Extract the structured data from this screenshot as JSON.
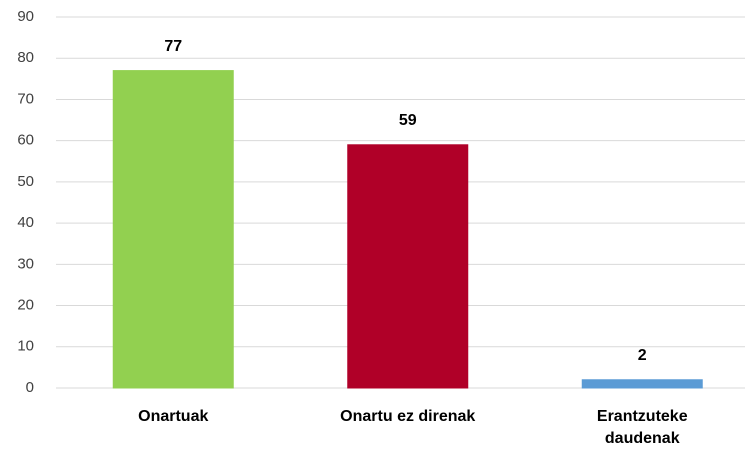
{
  "chart_data": {
    "type": "bar",
    "categories": [
      "Onartuak",
      "Onartu ez direnak",
      "Erantzuteke daudenak"
    ],
    "values": [
      77,
      59,
      2
    ],
    "colors": [
      "#92d050",
      "#b00028",
      "#5b9bd5"
    ],
    "ylim": [
      0,
      90
    ],
    "yticks": [
      0,
      10,
      20,
      30,
      40,
      50,
      60,
      70,
      80,
      90
    ],
    "grid": true
  }
}
